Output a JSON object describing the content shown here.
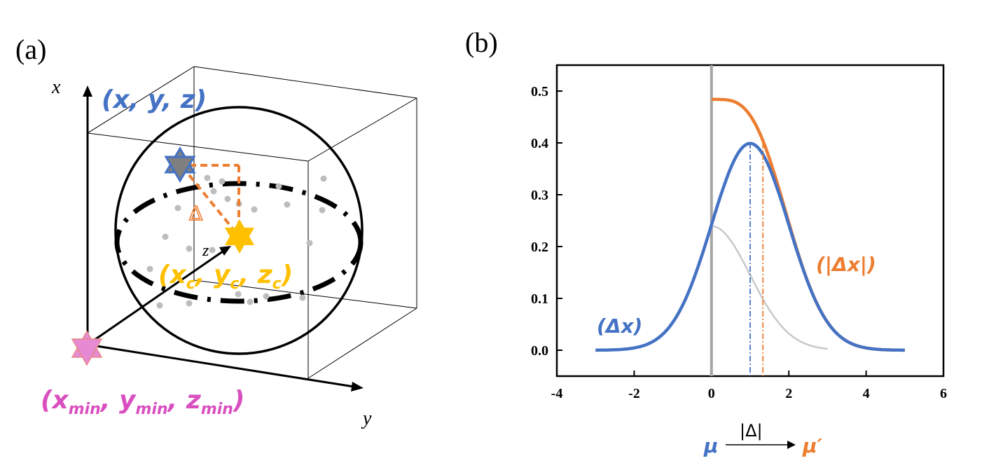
{
  "panel_a": {
    "label": "(a)",
    "axis_x": "x",
    "axis_y": "y",
    "axis_z": "z",
    "point_label": "(x, y, z)",
    "center_label": "(x_c, y_c, z_c)",
    "center_label_parts": {
      "x": "x",
      "y": "y",
      "z": "z",
      "sub": "c"
    },
    "min_label_parts": {
      "x": "x",
      "y": "y",
      "z": "z",
      "sub": "min"
    },
    "delta_label": "Δ",
    "colors": {
      "point": "#4472C4",
      "center": "#FFC000",
      "min": "#D94FC0",
      "delta": "#ED7D31",
      "scatter": "#BBBBBB"
    }
  },
  "panel_b": {
    "label": "(b)",
    "legend_blue": "(Δx)",
    "legend_orange": "(|Δx|)",
    "bottom_mu": "μ",
    "bottom_arrow_text": "|Δ|",
    "bottom_mu_prime": "μ′"
  },
  "chart_data": {
    "type": "line",
    "xlim": [
      -4,
      6
    ],
    "ylim": [
      -0.05,
      0.55
    ],
    "xticks": [
      -4,
      -2,
      0,
      2,
      4,
      6
    ],
    "yticks": [
      0.0,
      0.1,
      0.2,
      0.3,
      0.4,
      0.5
    ],
    "series": [
      {
        "name": "(Δx)",
        "color": "#4472C4",
        "kind": "gaussian",
        "mu": 1.0,
        "sigma": 1.0,
        "x_range": [
          -3,
          5
        ]
      },
      {
        "name": "(|Δx|)",
        "color": "#ED7D31",
        "kind": "folded-normal",
        "mu": 1.0,
        "sigma": 1.0,
        "x_range": [
          0,
          5
        ]
      },
      {
        "name": "reference",
        "color": "#C8C8C8",
        "kind": "half-gaussian-tail",
        "sigma": 1.0,
        "x_range": [
          0,
          3
        ]
      }
    ],
    "vlines": [
      {
        "x": 0,
        "color": "#A6A6A6",
        "style": "solid"
      },
      {
        "x": 1.0,
        "color": "#4472C4",
        "style": "dash-dot",
        "ymax": 0.4
      },
      {
        "x": 1.33,
        "color": "#ED7D31",
        "style": "dash-dot",
        "ymax": 0.4
      }
    ]
  }
}
